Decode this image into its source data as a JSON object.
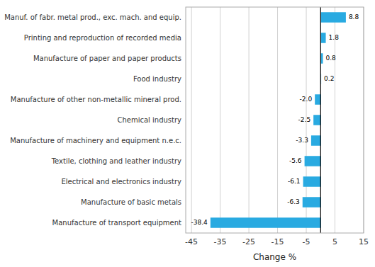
{
  "chart_data": {
    "type": "bar",
    "orientation": "horizontal",
    "xlabel": "Change %",
    "categories": [
      "Manufacture of transport equipment",
      "Manufacture of basic metals",
      "Electrical and electronics industry",
      "Textile, clothing and leather industry",
      "Manufacture of machinery and equipment n.e.c.",
      "Chemical industry",
      "Manufacture of other non-metallic mineral prod.",
      "Food industry",
      "Manufacture of paper and paper products",
      "Printing and reproduction of recorded media",
      "Manuf. of fabr. metal prod., exc. mach. and equip."
    ],
    "values": [
      -38.4,
      -6.3,
      -6.1,
      -5.6,
      -3.3,
      -2.5,
      -2.0,
      0.2,
      0.8,
      1.8,
      8.8
    ],
    "value_labels": [
      "-38.4",
      "-6.3",
      "-6.1",
      "-5.6",
      "-3.3",
      "-2.5",
      "-2.0",
      "0.2",
      "0.8",
      "1.8",
      "8.8"
    ],
    "color": "#29aae1",
    "xlim": [
      -47,
      15
    ],
    "xticks": [
      -45,
      -35,
      -25,
      -15,
      -5,
      5,
      15
    ],
    "grid": true,
    "data_labels": true
  }
}
